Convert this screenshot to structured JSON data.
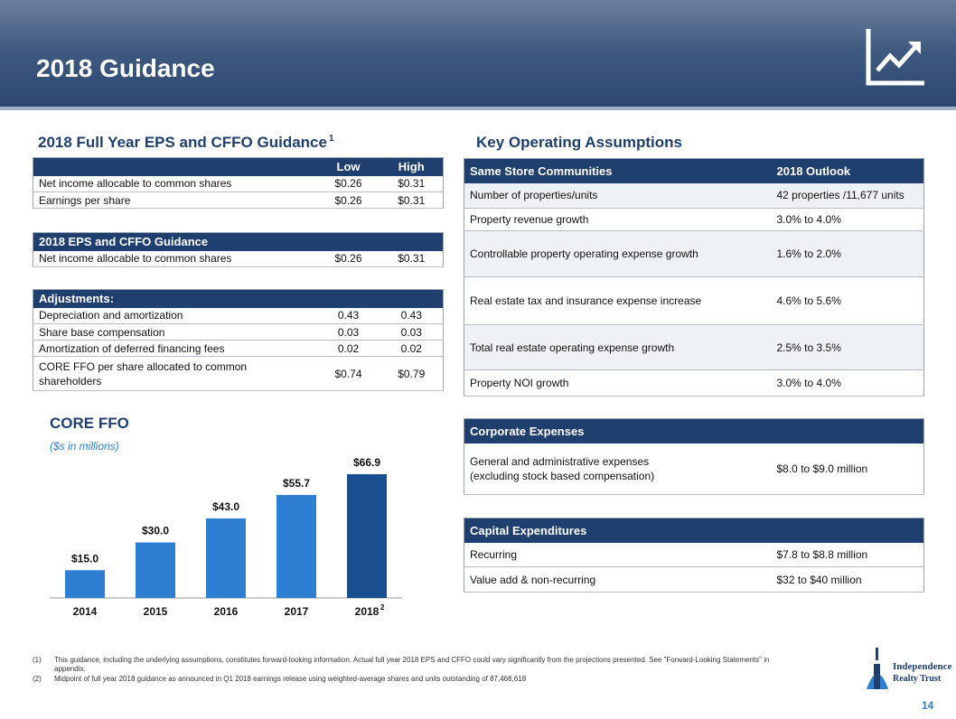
{
  "header": {
    "title": "2018 Guidance"
  },
  "eps_section": {
    "title": "2018 Full Year EPS and CFFO Guidance",
    "title_note": "1",
    "guidance_table": {
      "columns": [
        "Low",
        "High"
      ],
      "rows": [
        [
          "Net income allocable to common shares",
          "$0.26",
          "$0.31"
        ],
        [
          "Earnings per share",
          "$0.26",
          "$0.31"
        ]
      ]
    },
    "cffo_table": {
      "header": "2018 EPS and CFFO Guidance",
      "rows": [
        [
          "Net income allocable to common shares",
          "$0.26",
          "$0.31"
        ]
      ]
    },
    "adjustments_table": {
      "header": "Adjustments:",
      "rows": [
        [
          "Depreciation and amortization",
          "0.43",
          "0.43"
        ],
        [
          "Share base compensation",
          "0.03",
          "0.03"
        ],
        [
          "Amortization of deferred financing fees",
          "0.02",
          "0.02"
        ],
        [
          "CORE FFO per share allocated to common shareholders",
          "$0.74",
          "$0.79"
        ]
      ]
    }
  },
  "assumptions_section": {
    "title": "Key Operating Assumptions",
    "same_store": {
      "columns": [
        "Same Store Communities",
        "2018 Outlook"
      ],
      "rows": [
        [
          "Number of properties/units",
          "42 properties /11,677 units"
        ],
        [
          "Property revenue growth",
          "3.0% to 4.0%"
        ],
        [
          "Controllable property operating expense growth",
          "1.6% to 2.0%"
        ],
        [
          "Real estate tax and insurance expense increase",
          "4.6% to 5.6%"
        ],
        [
          "Total real estate operating expense growth",
          "2.5% to 3.5%"
        ],
        [
          "Property NOI growth",
          "3.0% to 4.0%"
        ]
      ]
    },
    "corporate": {
      "header": "Corporate Expenses",
      "rows": [
        [
          "General and administrative expenses\n(excluding stock based compensation)",
          "$8.0 to $9.0 million"
        ]
      ]
    },
    "capex": {
      "header": "Capital Expenditures",
      "rows": [
        [
          "Recurring",
          "$7.8 to $8.8 million"
        ],
        [
          "Value add & non-recurring",
          "$32 to $40 million"
        ]
      ]
    }
  },
  "chart_data": {
    "type": "bar",
    "title": "CORE FFO",
    "subtitle": "($s in millions)",
    "categories": [
      "2014",
      "2015",
      "2016",
      "2017",
      "2018"
    ],
    "category_notes": [
      null,
      null,
      null,
      null,
      "2"
    ],
    "values": [
      15.0,
      30.0,
      43.0,
      55.7,
      66.9
    ],
    "value_labels": [
      "$15.0",
      "$30.0",
      "$43.0",
      "$55.7",
      "$66.9"
    ],
    "colors": [
      "#2e7fd1",
      "#2e7fd1",
      "#2e7fd1",
      "#2e7fd1",
      "#1a4f8f"
    ]
  },
  "footnotes": [
    {
      "marker": "(1)",
      "text": "This guidance, including the underlying assumptions, constitutes forward-looking information. Actual full year 2018 EPS and CFFO could vary significantly from the projections presented. See \"Forward-Looking Statements\" in appendix."
    },
    {
      "marker": "(2)",
      "text": "Midpoint of full year 2018 guidance as announced in Q1 2018 earnings release using weighted-average shares and units outstanding of 87,466,618"
    }
  ],
  "logo": {
    "name": "Independence",
    "sub": "Realty Trust"
  },
  "page_number": "14"
}
